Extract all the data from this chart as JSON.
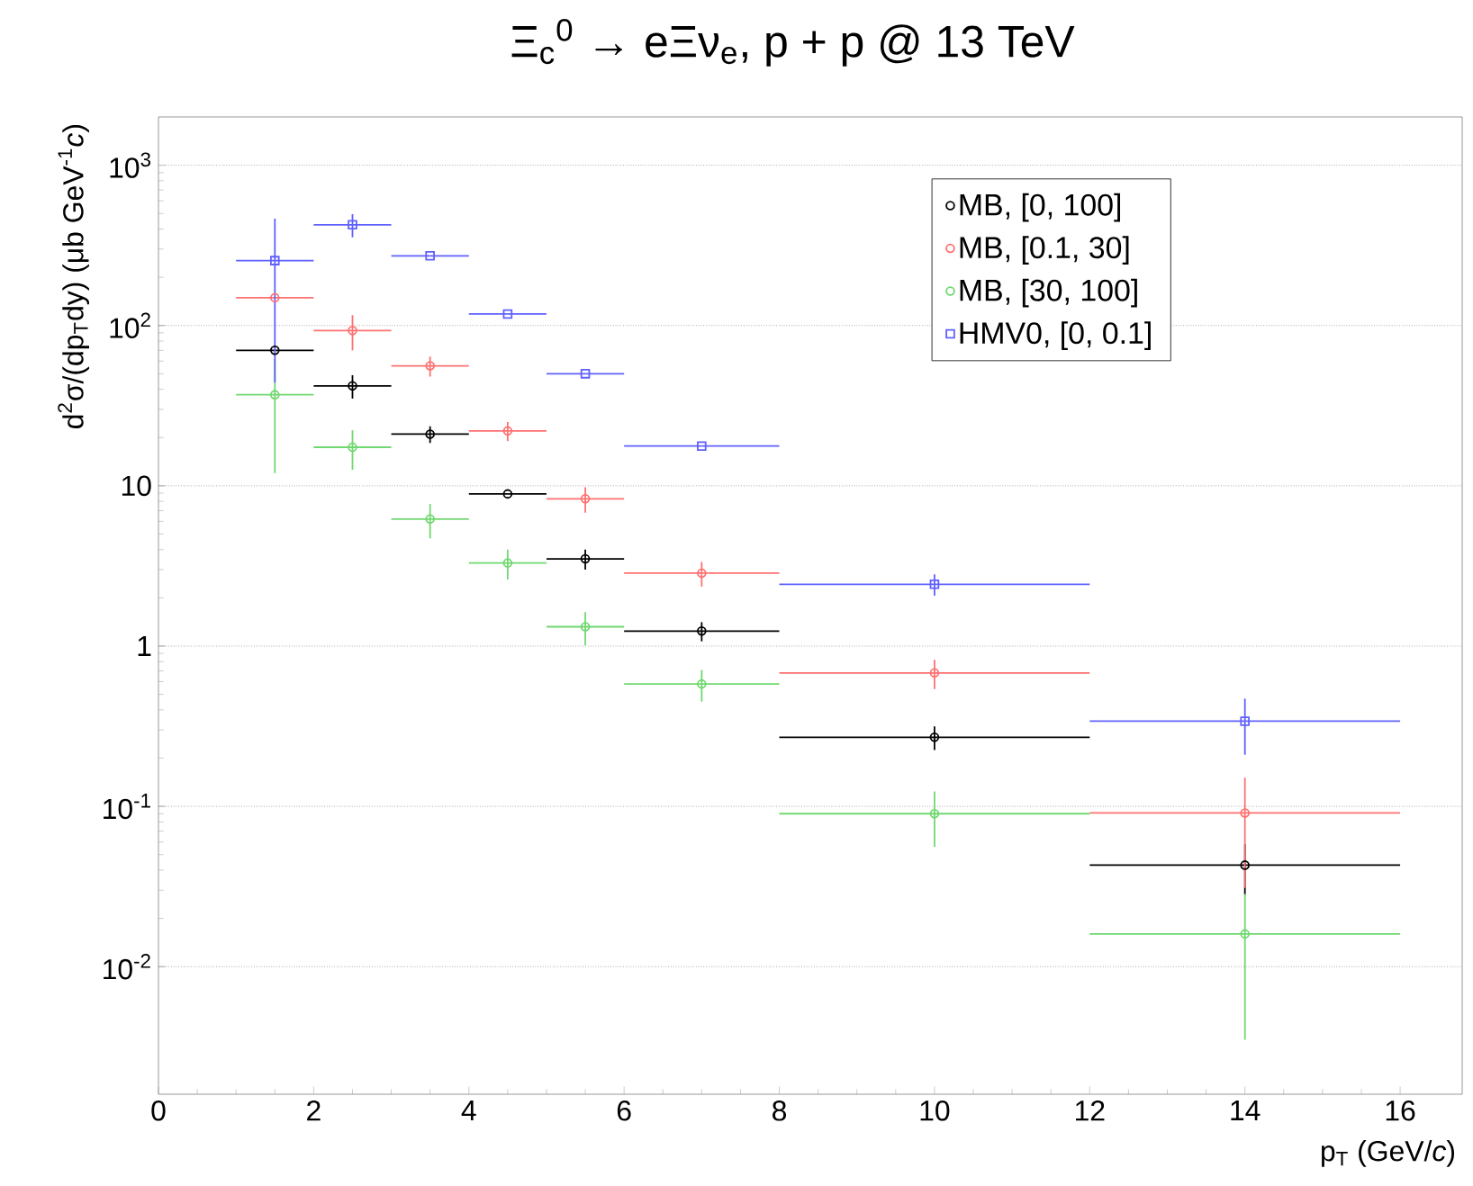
{
  "chart_data": {
    "type": "scatter",
    "title": "Ξ$_{c}$$^{0}$ → eΞν$_{e}$, p + p @ 13 TeV",
    "xlabel": "p$_{T}$ (GeV/*c*)",
    "ylabel": "d$^{2}$σ/(dp$_{T}$dy) (μb GeV$^{-1}$*c*)",
    "xlim": [
      0,
      16.8
    ],
    "xticks": [
      0,
      2,
      4,
      6,
      8,
      10,
      12,
      14,
      16
    ],
    "ylim": [
      0.0016,
      2000
    ],
    "yticks": [
      {
        "value": 0.01,
        "label": "10$^{-2}$"
      },
      {
        "value": 0.1,
        "label": "10$^{-1}$"
      },
      1,
      10,
      {
        "value": 100,
        "label": "10$^{2}$"
      },
      {
        "value": 1000,
        "label": "10$^{3}$"
      }
    ],
    "log": "y",
    "grid": "y",
    "legend": "top right",
    "series": [
      {
        "name": "MB, [0, 100]",
        "color": "#000000",
        "marker": "circle",
        "x": [
          1.5,
          2.5,
          3.5,
          4.5,
          5.5,
          7,
          10,
          14
        ],
        "values": [
          70,
          42,
          21,
          8.9,
          3.5,
          1.24,
          0.27,
          0.043
        ],
        "errors": [
          null,
          7,
          2.5,
          null,
          0.5,
          0.17,
          0.045,
          0.015
        ],
        "xerrors": [
          0.5,
          0.5,
          0.5,
          0.5,
          0.5,
          1,
          2,
          2
        ]
      },
      {
        "name": "MB, [0.1, 30]",
        "color": "#ff7070",
        "marker": "circle",
        "x": [
          1.5,
          2.5,
          3.5,
          4.5,
          5.5,
          7,
          10,
          14
        ],
        "values": [
          149,
          93,
          56,
          22,
          8.3,
          2.85,
          0.68,
          0.091
        ],
        "errors": [
          null,
          23,
          8,
          3,
          1.5,
          0.5,
          0.14,
          0.06
        ],
        "xerrors": [
          0.5,
          0.5,
          0.5,
          0.5,
          0.5,
          1,
          2,
          2
        ]
      },
      {
        "name": "MB, [30, 100]",
        "color": "#70d870",
        "marker": "circle",
        "x": [
          1.5,
          2.5,
          3.5,
          4.5,
          5.5,
          7,
          10,
          14
        ],
        "values": [
          37,
          17.4,
          6.2,
          3.3,
          1.32,
          0.58,
          0.09,
          0.016
        ],
        "errors": [
          25,
          4.8,
          1.5,
          0.7,
          0.31,
          0.13,
          0.034,
          0.0125
        ],
        "xerrors": [
          0.5,
          0.5,
          0.5,
          0.5,
          0.5,
          1,
          2,
          2
        ]
      },
      {
        "name": "HMV0, [0, 0.1]",
        "color": "#6060ff",
        "marker": "square",
        "x": [
          1.5,
          2.5,
          3.5,
          4.5,
          5.5,
          7,
          10,
          14
        ],
        "values": [
          254,
          425,
          272,
          118,
          50,
          17.7,
          2.43,
          0.34
        ],
        "errors": [
          210,
          70,
          null,
          null,
          null,
          null,
          0.37,
          0.13
        ],
        "xerrors": [
          0.5,
          0.5,
          0.5,
          0.5,
          0.5,
          1,
          2,
          2
        ]
      }
    ]
  }
}
